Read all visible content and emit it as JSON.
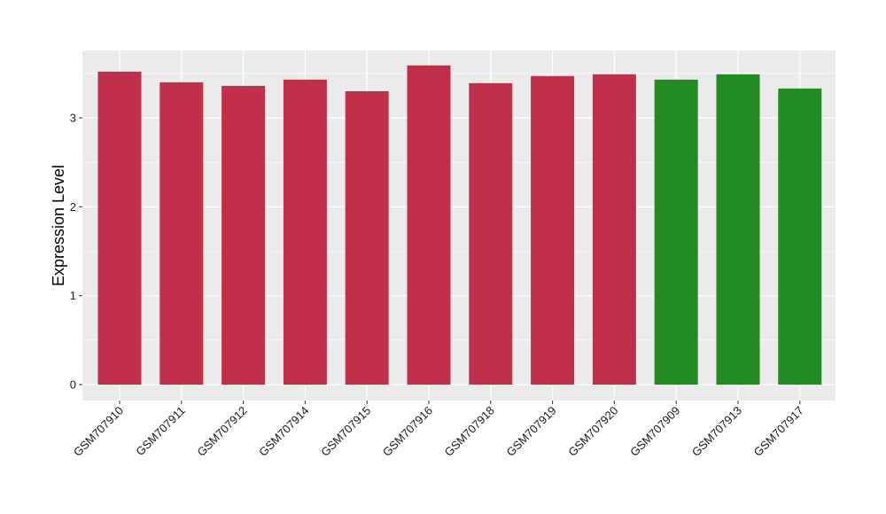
{
  "chart_data": {
    "type": "bar",
    "title": "",
    "xlabel": "",
    "ylabel": "Expression Level",
    "ylim": [
      -0.18,
      3.76
    ],
    "yticks": [
      0,
      1,
      2,
      3
    ],
    "grid": true,
    "legend": "none",
    "categories": [
      "GSM707910",
      "GSM707911",
      "GSM707912",
      "GSM707914",
      "GSM707915",
      "GSM707916",
      "GSM707918",
      "GSM707919",
      "GSM707920",
      "GSM707909",
      "GSM707913",
      "GSM707917"
    ],
    "values": [
      3.52,
      3.4,
      3.36,
      3.43,
      3.3,
      3.59,
      3.39,
      3.47,
      3.49,
      3.43,
      3.49,
      3.33
    ],
    "bar_colors": [
      "#c0304a",
      "#c0304a",
      "#c0304a",
      "#c0304a",
      "#c0304a",
      "#c0304a",
      "#c0304a",
      "#c0304a",
      "#c0304a",
      "#228b22",
      "#228b22",
      "#228b22"
    ]
  },
  "colors": {
    "panel_background": "#ebebeb",
    "gridline": "#ffffff",
    "tick": "#333333"
  }
}
